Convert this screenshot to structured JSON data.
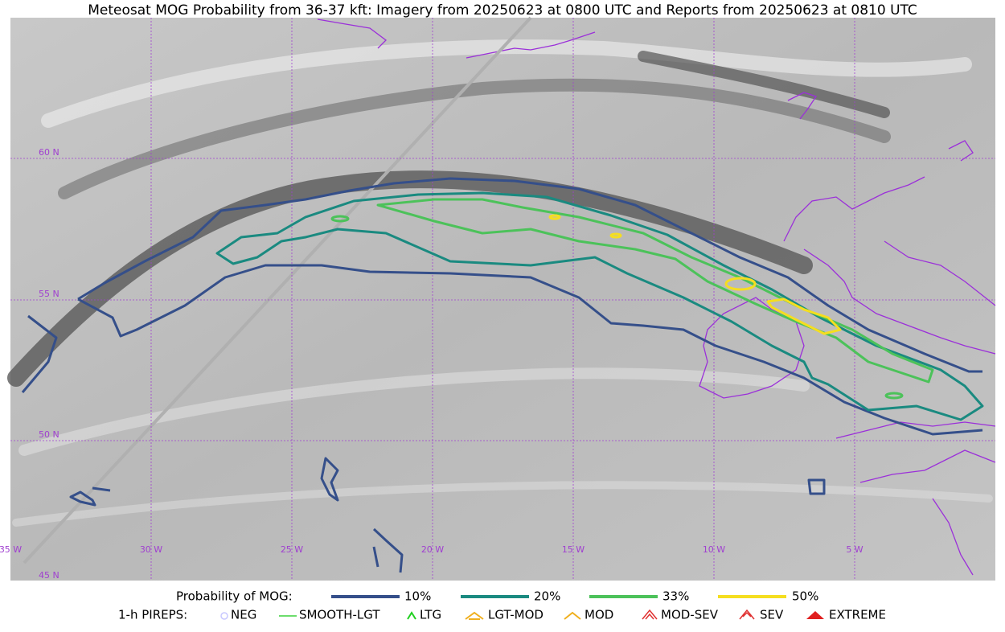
{
  "title": "Meteosat MOG Probability from 36-37 kft: Imagery from 20250623 at 0800 UTC and Reports from 20250623 at 0810 UTC",
  "map": {
    "lat_labels": [
      "60 N",
      "55 N",
      "50 N",
      "45 N"
    ],
    "lon_labels": [
      "35 W",
      "30 W",
      "25 W",
      "20 W",
      "15 W",
      "10 W",
      "5 W"
    ]
  },
  "legend": {
    "probability": {
      "label": "Probability of MOG:",
      "entries": [
        "10%",
        "20%",
        "33%",
        "50%"
      ]
    },
    "pireps": {
      "label": "1-h PIREPS:",
      "entries": [
        "NEG",
        "SMOOTH-LGT",
        "LTG",
        "LGT-MOD",
        "MOD",
        "MOD-SEV",
        "SEV",
        "EXTREME"
      ]
    }
  }
}
